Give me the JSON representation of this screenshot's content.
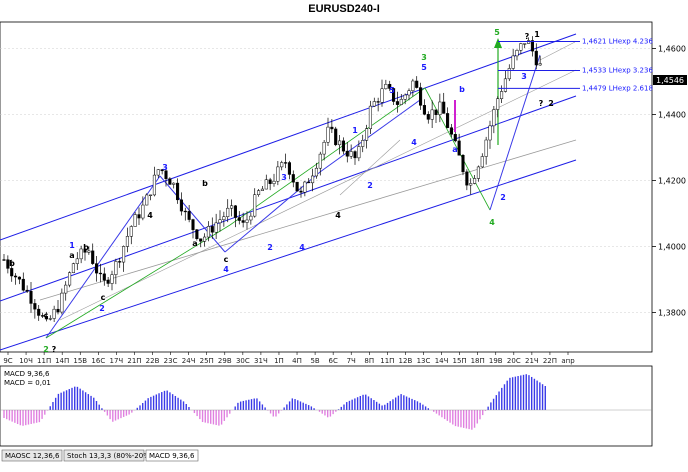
{
  "title": "EURUSD240-I",
  "colors": {
    "channel": "#1e1ee6",
    "green_line": "#22aa22",
    "blue_line": "#3a3ae8",
    "grey_line": "#9a9a9a",
    "candle": "#000000",
    "magenta": "#d020d0",
    "macd_pos": "#3a3ae8",
    "macd_neg": "#e080e0",
    "current_bg": "#000000"
  },
  "price_axis": {
    "labels": [
      "1,4600",
      "1,4400",
      "1,4200",
      "1,4000",
      "1,3800"
    ],
    "current": "1,4546"
  },
  "time_axis": [
    "9C",
    "10Ч",
    "11П",
    "14П",
    "15B",
    "16C",
    "17Ч",
    "21П",
    "22B",
    "23C",
    "24Ч",
    "25П",
    "29B",
    "30C",
    "31Ч",
    "1П",
    "4П",
    "5B",
    "6C",
    "7Ч",
    "8П",
    "11П",
    "12B",
    "13C",
    "14Ч",
    "15П",
    "18П",
    "19B",
    "20C",
    "21Ч",
    "22П",
    "апр"
  ],
  "levels": [
    {
      "label": "1,4621 LHexp 4.236",
      "value": 1.4621
    },
    {
      "label": "1,4533 LHexp 3.236",
      "value": 1.4533
    },
    {
      "label": "1,4479 LHexp 2.618",
      "value": 1.4479
    }
  ],
  "wave_labels": [
    {
      "text": "b",
      "color": "#000"
    },
    {
      "text": "c",
      "color": "#000"
    },
    {
      "text": "2",
      "color": "#22aa22"
    },
    {
      "text": "?",
      "color": "#000"
    },
    {
      "text": "1",
      "color": "#1a1aff"
    },
    {
      "text": "a",
      "color": "#000"
    },
    {
      "text": "b",
      "color": "#000"
    },
    {
      "text": "c",
      "color": "#000"
    },
    {
      "text": "2",
      "color": "#1a1aff"
    },
    {
      "text": "3",
      "color": "#1a1aff"
    },
    {
      "text": "4",
      "color": "#000"
    },
    {
      "text": "b",
      "color": "#000"
    },
    {
      "text": "a",
      "color": "#000"
    },
    {
      "text": "c",
      "color": "#000"
    },
    {
      "text": "4",
      "color": "#1a1aff"
    },
    {
      "text": "2",
      "color": "#1a1aff"
    },
    {
      "text": "3",
      "color": "#1a1aff"
    },
    {
      "text": "4",
      "color": "#1a1aff"
    },
    {
      "text": "1",
      "color": "#1a1aff"
    },
    {
      "text": "2",
      "color": "#1a1aff"
    },
    {
      "text": "4",
      "color": "#000"
    },
    {
      "text": "5",
      "color": "#1a1aff"
    },
    {
      "text": "3",
      "color": "#22aa22"
    },
    {
      "text": "5",
      "color": "#1a1aff"
    },
    {
      "text": "b",
      "color": "#1a1aff"
    },
    {
      "text": "a",
      "color": "#1a1aff"
    },
    {
      "text": "4",
      "color": "#1a1aff"
    },
    {
      "text": "4",
      "color": "#22aa22"
    },
    {
      "text": "5",
      "color": "#22aa22"
    },
    {
      "text": "?",
      "color": "#000"
    },
    {
      "text": "1",
      "color": "#000"
    },
    {
      "text": "3",
      "color": "#1a1aff"
    },
    {
      "text": "2",
      "color": "#000"
    },
    {
      "text": "?",
      "color": "#000"
    },
    {
      "text": "2",
      "color": "#1a1aff"
    }
  ],
  "indicator": {
    "line1": "MACD 9,36,6",
    "line2": "MACD = 0,01"
  },
  "tabs": [
    "MAOSC 12,36,6",
    "Stoch 13,3,3 (80%-20%)",
    "MACD 9,36,6"
  ],
  "chart_data": {
    "type": "candlestick",
    "title": "EURUSD240-I",
    "ylim": [
      1.368,
      1.468
    ],
    "series": [
      {
        "name": "price",
        "values": [
          1.396,
          1.39,
          1.384,
          1.376,
          1.383,
          1.396,
          1.399,
          1.388,
          1.395,
          1.406,
          1.413,
          1.424,
          1.419,
          1.408,
          1.402,
          1.407,
          1.411,
          1.406,
          1.416,
          1.42,
          1.426,
          1.415,
          1.424,
          1.435,
          1.43,
          1.426,
          1.442,
          1.448,
          1.443,
          1.45,
          1.44,
          1.442,
          1.43,
          1.418,
          1.43,
          1.445,
          1.456,
          1.463,
          1.4546
        ]
      }
    ],
    "macd": [
      -0.002,
      -0.004,
      -0.003,
      0.004,
      0.006,
      0.003,
      -0.003,
      -0.001,
      0.003,
      0.005,
      0.002,
      -0.003,
      -0.004,
      0.002,
      0.003,
      -0.002,
      0.003,
      0.001,
      -0.002,
      0.002,
      0.004,
      0.001,
      0.004,
      0.002,
      -0.001,
      -0.004,
      -0.005,
      0.002,
      0.008,
      0.009,
      0.006
    ]
  }
}
